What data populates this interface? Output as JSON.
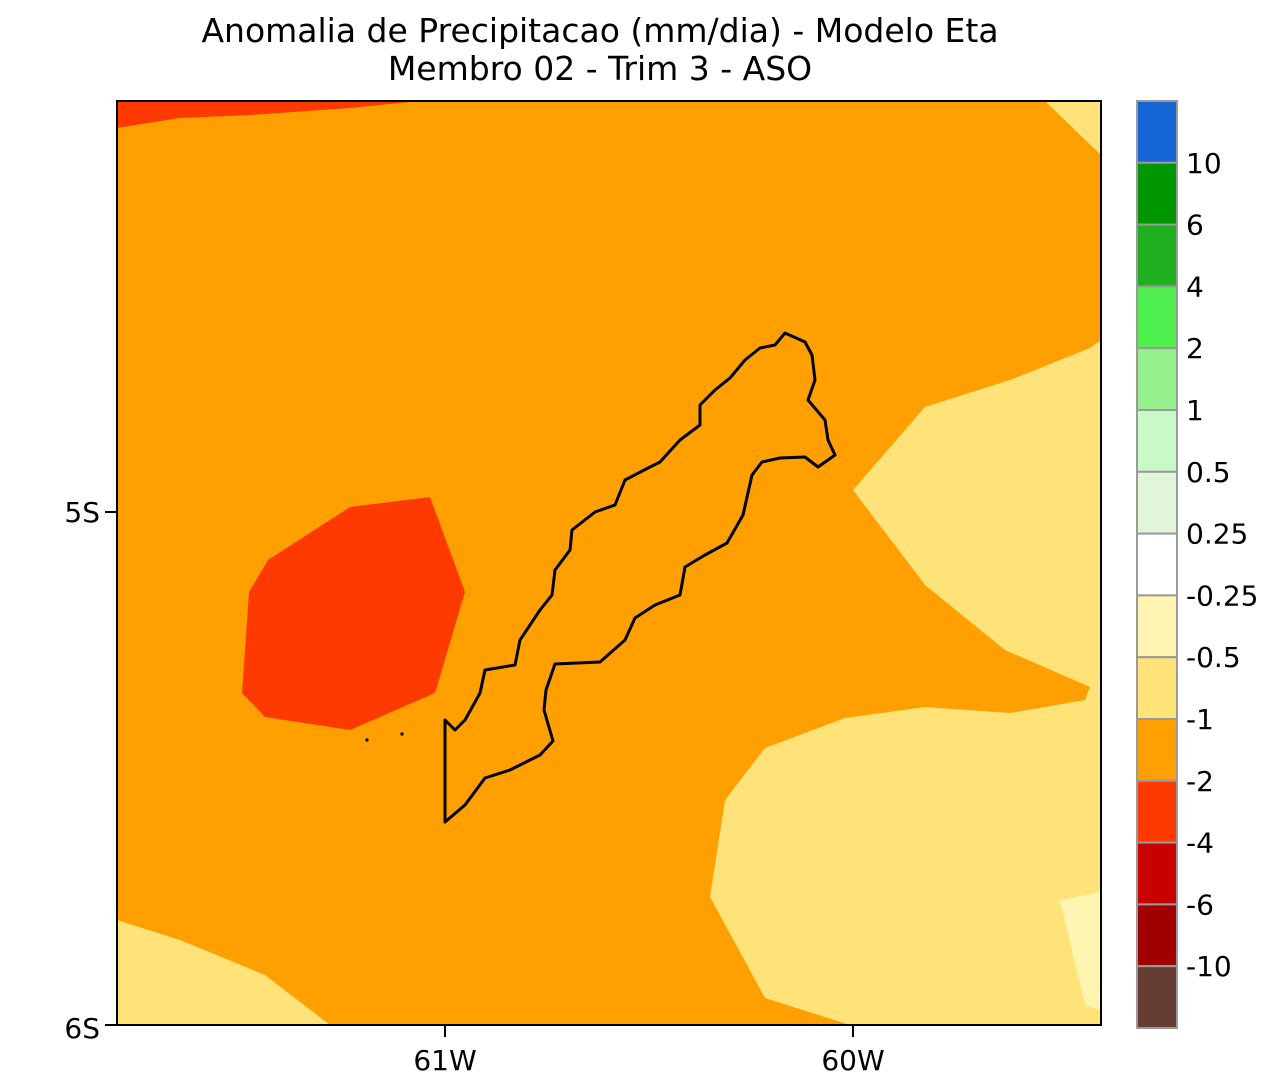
{
  "title": {
    "line1": "Anomalia de Precipitacao (mm/dia) - Modelo Eta",
    "line2": "Membro 02 - Trim 3 - ASO"
  },
  "axes": {
    "y_ticks": [
      "5S",
      "6S"
    ],
    "x_ticks": [
      "61W",
      "60W"
    ]
  },
  "colorbar": {
    "labels": [
      "10",
      "6",
      "4",
      "2",
      "1",
      "0.5",
      "0.25",
      "-0.25",
      "-0.5",
      "-1",
      "-2",
      "-4",
      "-6",
      "-10"
    ],
    "colors": [
      "#1565d6",
      "#009600",
      "#1eb01e",
      "#50f050",
      "#96f08c",
      "#c8fac8",
      "#e2f6dc",
      "#ffffff",
      "#fff5b0",
      "#ffe278",
      "#ffa000",
      "#ff3a00",
      "#c80000",
      "#a00000",
      "#643c32"
    ]
  },
  "map_fill_colors": {
    "base": "#ffa000",
    "strong_negative": "#ff3a00",
    "weak_negative": "#ffe278",
    "very_weak_negative": "#fff5b0",
    "outline": "#000000"
  }
}
